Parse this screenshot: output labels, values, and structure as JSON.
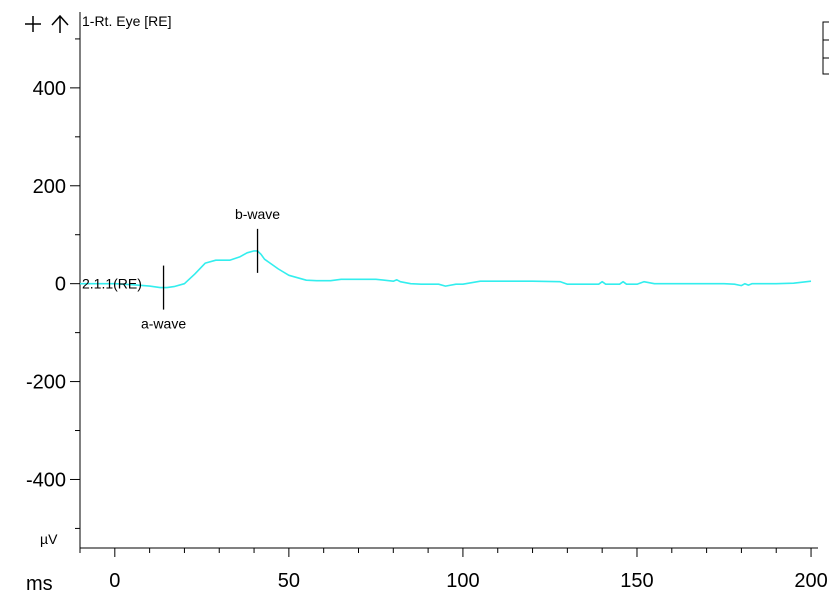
{
  "toolbar": {
    "zoom_icon": "plus-icon",
    "up_icon": "up-arrow-icon"
  },
  "chart_data": {
    "type": "line",
    "title": "",
    "channel_label": "1-Rt. Eye [RE]",
    "xlabel": "ms",
    "ylabel": "µV",
    "xlim": [
      -10,
      202
    ],
    "ylim": [
      -540,
      555
    ],
    "x_ticks": [
      0,
      50,
      100,
      150,
      200
    ],
    "x_tick_labels": [
      "0",
      "50",
      "100",
      "150",
      "200"
    ],
    "y_ticks": [
      400,
      200,
      0,
      -200,
      -400
    ],
    "y_tick_labels": [
      "400",
      "200",
      "0",
      "-200",
      "-400"
    ],
    "grid": false,
    "legend": "none",
    "series": [
      {
        "name": "2.1.1(RE)",
        "color": "#33eeee",
        "x": [
          -10,
          0,
          5,
          10,
          13,
          15,
          17,
          20,
          23,
          26,
          29,
          33,
          36,
          38,
          40,
          41,
          42,
          43,
          45,
          47,
          50,
          55,
          58,
          62,
          65,
          70,
          75,
          80,
          81,
          82,
          85,
          88,
          93,
          95,
          98,
          100,
          105,
          110,
          115,
          120,
          128,
          130,
          135,
          139,
          140,
          141,
          145,
          146,
          147,
          150,
          152,
          155,
          160,
          165,
          170,
          175,
          178,
          180,
          181,
          182,
          183,
          185,
          190,
          195,
          200
        ],
        "y": [
          0,
          0,
          -2,
          -5,
          -8,
          -8,
          -6,
          0,
          20,
          42,
          48,
          48,
          55,
          63,
          67,
          67,
          60,
          50,
          40,
          30,
          17,
          7,
          6,
          6,
          9,
          9,
          9,
          5,
          8,
          4,
          0,
          -1,
          -1,
          -5,
          -1,
          -1,
          5,
          5,
          5,
          5,
          4,
          -1,
          -1,
          -1,
          4,
          -1,
          -1,
          4,
          -1,
          -1,
          4,
          0,
          0,
          0,
          0,
          0,
          -1,
          -4,
          0,
          -3,
          0,
          0,
          0,
          1,
          5
        ]
      }
    ],
    "markers": [
      {
        "label": "a-wave",
        "x": 14,
        "y": -8
      },
      {
        "label": "b-wave",
        "x": 41,
        "y": 67
      }
    ]
  }
}
